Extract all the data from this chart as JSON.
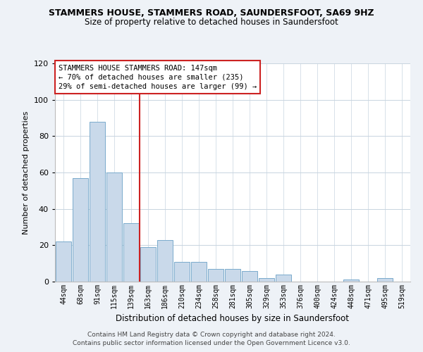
{
  "title": "STAMMERS HOUSE, STAMMERS ROAD, SAUNDERSFOOT, SA69 9HZ",
  "subtitle": "Size of property relative to detached houses in Saundersfoot",
  "xlabel": "Distribution of detached houses by size in Saundersfoot",
  "ylabel": "Number of detached properties",
  "categories": [
    "44sqm",
    "68sqm",
    "91sqm",
    "115sqm",
    "139sqm",
    "163sqm",
    "186sqm",
    "210sqm",
    "234sqm",
    "258sqm",
    "281sqm",
    "305sqm",
    "329sqm",
    "353sqm",
    "376sqm",
    "400sqm",
    "424sqm",
    "448sqm",
    "471sqm",
    "495sqm",
    "519sqm"
  ],
  "values": [
    22,
    57,
    88,
    60,
    32,
    19,
    23,
    11,
    11,
    7,
    7,
    6,
    2,
    4,
    0,
    0,
    0,
    1,
    0,
    2,
    0
  ],
  "bar_color": "#c9d9ea",
  "bar_edge_color": "#7aabcc",
  "background_color": "#eef2f7",
  "plot_bg_color": "#ffffff",
  "grid_color": "#c8d4e0",
  "ylim": [
    0,
    120
  ],
  "yticks": [
    0,
    20,
    40,
    60,
    80,
    100,
    120
  ],
  "marker_index": 4,
  "marker_color": "#cc2222",
  "annotation_line1": "STAMMERS HOUSE STAMMERS ROAD: 147sqm",
  "annotation_line2": "← 70% of detached houses are smaller (235)",
  "annotation_line3": "29% of semi-detached houses are larger (99) →",
  "footer_line1": "Contains HM Land Registry data © Crown copyright and database right 2024.",
  "footer_line2": "Contains public sector information licensed under the Open Government Licence v3.0."
}
